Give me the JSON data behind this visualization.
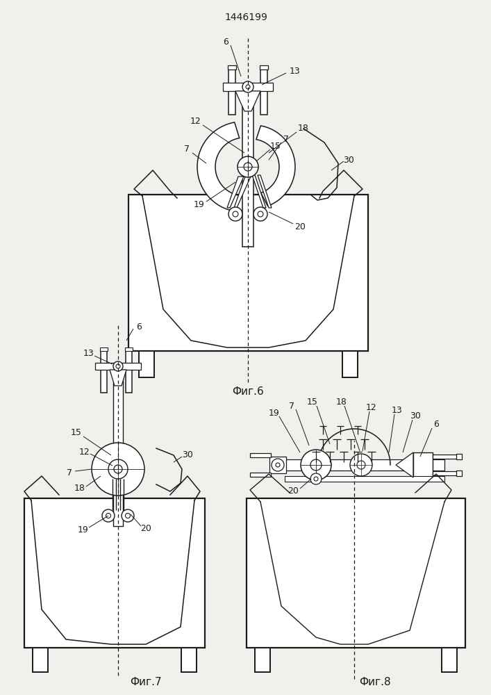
{
  "title": "1446199",
  "fig6_caption": "Фиг.6",
  "fig7_caption": "Фиг.7",
  "fig8_caption": "Фиг.8",
  "bg_color": "#f0f0ec",
  "line_color": "#1a1a1a",
  "label_fontsize": 9,
  "caption_fontsize": 11,
  "title_fontsize": 10
}
